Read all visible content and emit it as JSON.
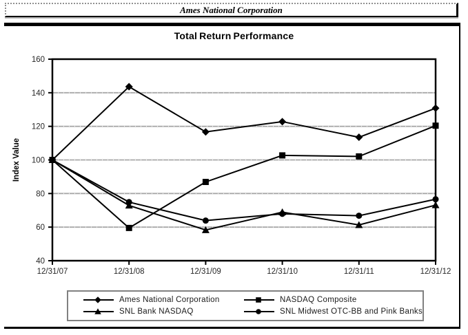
{
  "banner": {
    "title": "Ames National Corporation"
  },
  "chart_data": {
    "type": "line",
    "title": "Total Return Performance",
    "categories": [
      "12/31/07",
      "12/31/08",
      "12/31/09",
      "12/31/10",
      "12/31/11",
      "12/31/12"
    ],
    "series": [
      {
        "name": "Ames National Corporation",
        "marker": "diamond",
        "values": [
          100,
          143.6,
          116.7,
          122.8,
          113.5,
          130.8
        ]
      },
      {
        "name": "NASDAQ Composite",
        "marker": "square",
        "values": [
          100,
          59.5,
          86.9,
          102.7,
          102.1,
          120.4
        ]
      },
      {
        "name": "SNL Bank NASDAQ",
        "marker": "triangle",
        "values": [
          100,
          72.9,
          58.3,
          68.9,
          61.3,
          73.1
        ]
      },
      {
        "name": "SNL Midwest OTC-BB and Pink Banks",
        "marker": "circle",
        "values": [
          100,
          74.9,
          63.9,
          67.9,
          66.8,
          76.6
        ]
      }
    ],
    "xlabel": "",
    "ylabel": "Index Value",
    "ylim": [
      40,
      160
    ],
    "y_ticks": [
      40,
      60,
      80,
      100,
      120,
      140,
      160
    ],
    "grid": true,
    "legend_position": "bottom",
    "series_color": "#000000",
    "gridline_color": "#a8a8a8",
    "legend_border_color": "#808080"
  }
}
